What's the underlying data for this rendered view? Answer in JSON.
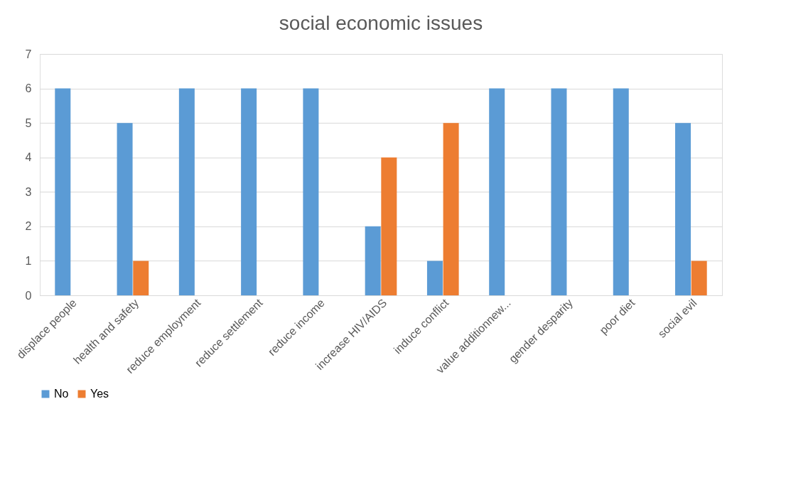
{
  "chart_data": {
    "type": "bar",
    "title": "social economic issues",
    "categories": [
      "displace people",
      "health and safety",
      "reduce employment",
      "reduce settlement",
      "reduce income",
      "increase HIV/AIDS",
      "induce conflict",
      "value additionnew...",
      "gender desparity",
      "poor diet",
      "social evil"
    ],
    "series": [
      {
        "name": "No",
        "color": "#5b9bd5",
        "values": [
          6,
          5,
          6,
          6,
          6,
          2,
          1,
          6,
          6,
          6,
          5
        ]
      },
      {
        "name": "Yes",
        "color": "#ed7d31",
        "values": [
          null,
          1,
          null,
          null,
          null,
          4,
          5,
          null,
          null,
          null,
          1
        ]
      }
    ],
    "ylim": [
      0,
      7
    ],
    "yticks": [
      0,
      1,
      2,
      3,
      4,
      5,
      6,
      7
    ],
    "grid": "y",
    "legend": "bottom"
  }
}
